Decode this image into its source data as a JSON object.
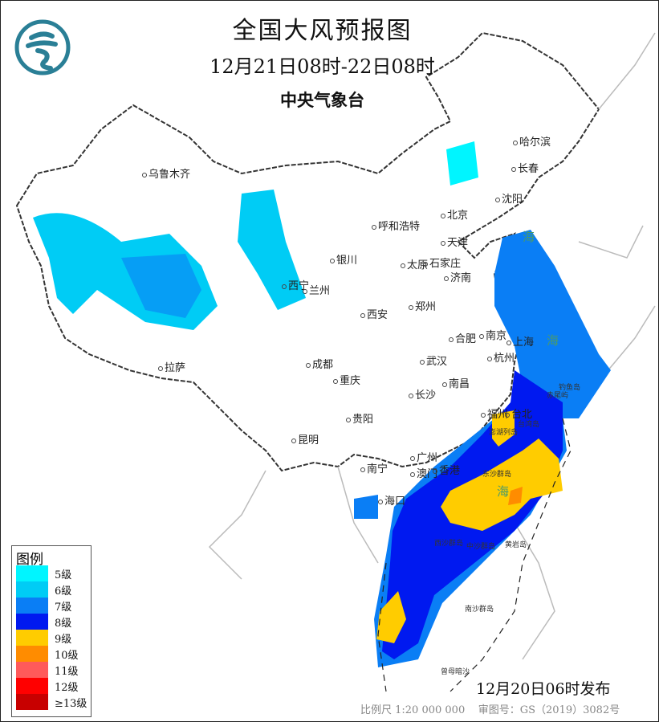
{
  "header": {
    "title": "全国大风预报图",
    "valid_period": "12月21日08时-22日08时",
    "issuer": "中央气象台",
    "logo_icon": "cma-logo"
  },
  "legend": {
    "title": "图例",
    "items": [
      {
        "label": "5级",
        "color": "#00f5ff"
      },
      {
        "label": "6级",
        "color": "#00ccf5"
      },
      {
        "label": "7级",
        "color": "#0a7ef5"
      },
      {
        "label": "8级",
        "color": "#0019f0"
      },
      {
        "label": "9级",
        "color": "#ffcc00"
      },
      {
        "label": "10级",
        "color": "#ff8c00"
      },
      {
        "label": "11级",
        "color": "#ff5a5a"
      },
      {
        "label": "12级",
        "color": "#ff0000"
      },
      {
        "label": "≥13级",
        "color": "#c80000"
      }
    ]
  },
  "cities": [
    "哈尔滨",
    "长春",
    "沈阳",
    "北京",
    "天津",
    "呼和浩特",
    "乌鲁木齐",
    "银川",
    "太原",
    "石家庄",
    "济南",
    "西宁",
    "兰州",
    "郑州",
    "西安",
    "合肥",
    "南京",
    "上海",
    "杭州",
    "武汉",
    "成都",
    "重庆",
    "拉萨",
    "南昌",
    "长沙",
    "贵阳",
    "福州",
    "台北",
    "昆明",
    "南宁",
    "广州",
    "澳门",
    "香港",
    "海口"
  ],
  "islands": [
    "钓鱼岛",
    "赤尾屿",
    "台湾岛",
    "澎湖列岛",
    "东沙群岛",
    "中沙群岛",
    "黄岩岛",
    "南沙群岛",
    "曾母暗沙",
    "西沙群岛"
  ],
  "seas": [
    "海",
    "海",
    "海"
  ],
  "footer": {
    "issued": "12月20日06时发布",
    "scale": "比例尺 1:20 000 000",
    "map_approval": "审图号：GS（2019）3082号"
  }
}
